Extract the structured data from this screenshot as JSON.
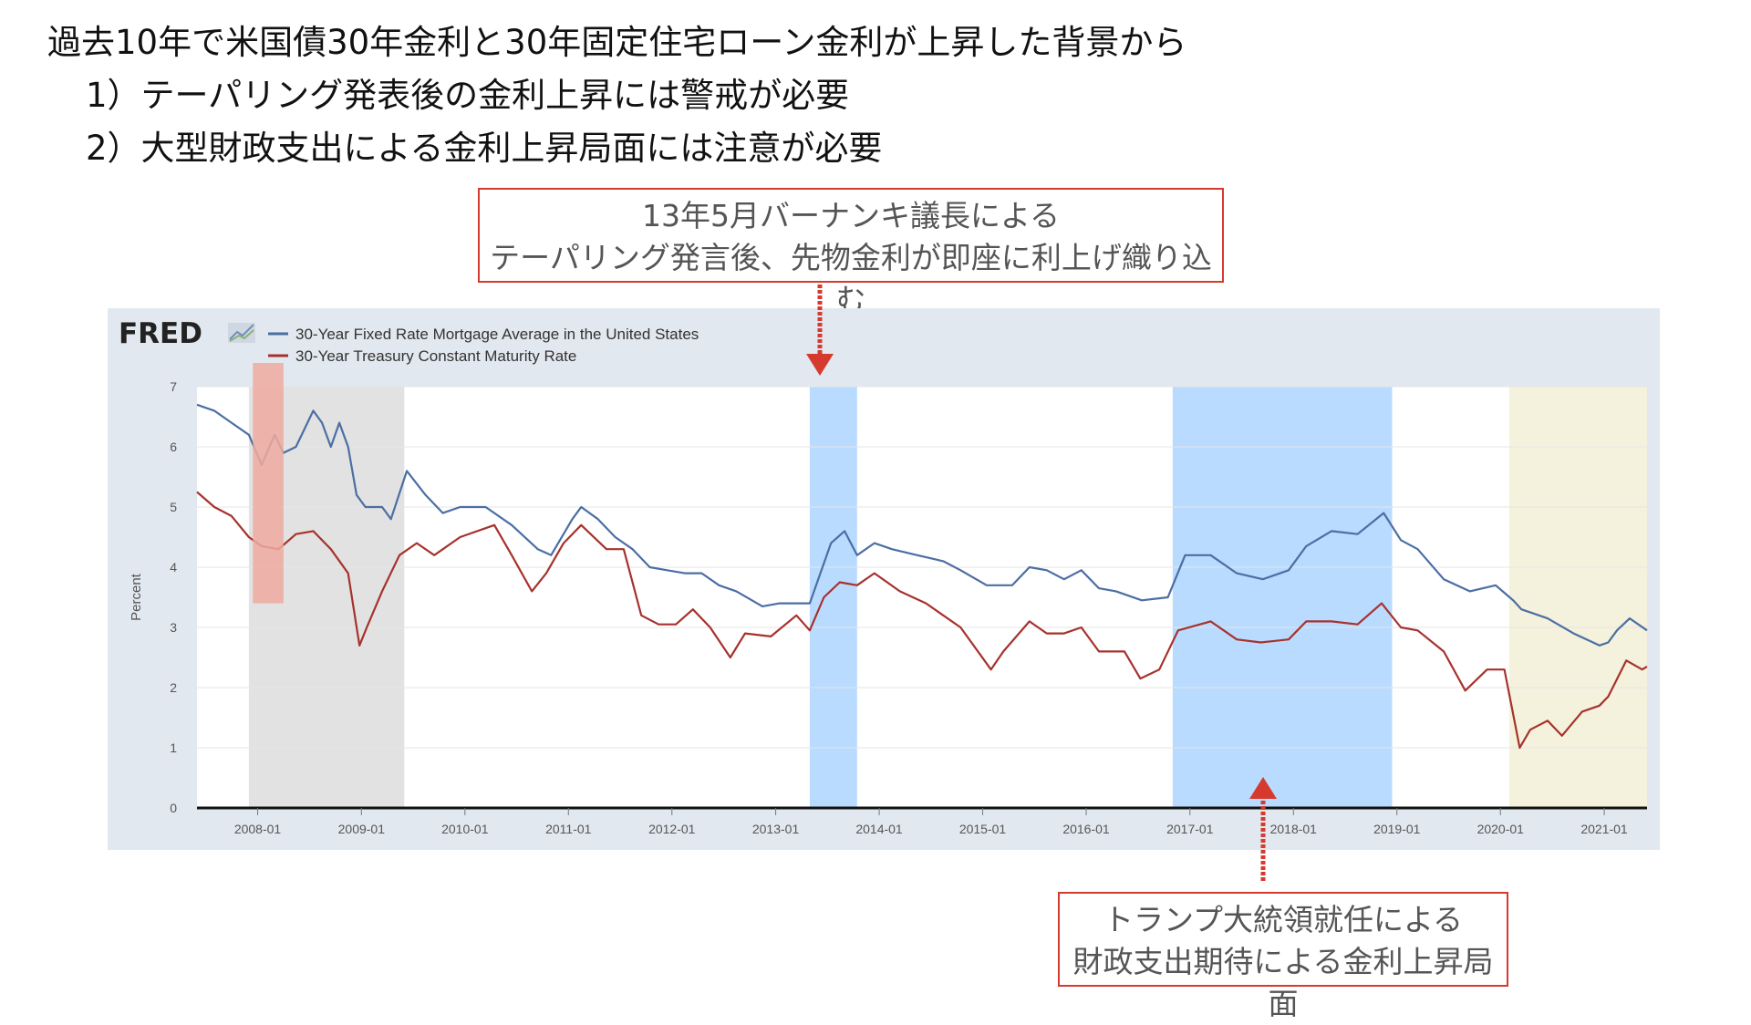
{
  "heading": {
    "line1": "過去10年で米国債30年金利と30年固定住宅ローン金利が上昇した背景から",
    "line2": "1）テーパリング発表後の金利上昇には警戒が必要",
    "line3": "2）大型財政支出による金利上昇局面には注意が必要"
  },
  "callouts": {
    "top": {
      "line1": "13年5月バーナンキ議長による",
      "line2": "テーパリング発言後、先物金利が即座に利上げ織り込む"
    },
    "bottom": {
      "line1": "トランプ大統領就任による",
      "line2": "財政支出期待による金利上昇局面"
    }
  },
  "colors": {
    "accent_red": "#d63a2f",
    "mortgage": "#4c6ea3",
    "treasury": "#a6322d",
    "recession": "#e2e2e2",
    "highlight_blue": "#b9dbff",
    "highlight_yellow": "#f4f2dc",
    "highlight_red": "#eeaaa0",
    "panel_bg": "#e2e8ef"
  },
  "chart_data": {
    "type": "line",
    "logo": "FRED",
    "logo_icon": "line-chart-icon",
    "ylabel": "Percent",
    "ylim": [
      0,
      7
    ],
    "xlim": [
      "2007-06-01",
      "2021-06-01"
    ],
    "yticks": [
      "0",
      "1",
      "2",
      "3",
      "4",
      "5",
      "6",
      "7"
    ],
    "xticks": [
      {
        "label": "2008-01",
        "date": "2008-01-01"
      },
      {
        "label": "2009-01",
        "date": "2009-01-01"
      },
      {
        "label": "2010-01",
        "date": "2010-01-01"
      },
      {
        "label": "2011-01",
        "date": "2011-01-01"
      },
      {
        "label": "2012-01",
        "date": "2012-01-01"
      },
      {
        "label": "2013-01",
        "date": "2013-01-01"
      },
      {
        "label": "2014-01",
        "date": "2014-01-01"
      },
      {
        "label": "2015-01",
        "date": "2015-01-01"
      },
      {
        "label": "2016-01",
        "date": "2016-01-01"
      },
      {
        "label": "2017-01",
        "date": "2017-01-01"
      },
      {
        "label": "2018-01",
        "date": "2018-01-01"
      },
      {
        "label": "2019-01",
        "date": "2019-01-01"
      },
      {
        "label": "2020-01",
        "date": "2020-01-01"
      },
      {
        "label": "2021-01",
        "date": "2021-01-01"
      }
    ],
    "shaded_regions": [
      {
        "start": "2007-12-01",
        "end": "2009-06-01",
        "color": "#e2e2e2",
        "kind": "recession"
      },
      {
        "start": "2013-05-01",
        "end": "2013-10-15",
        "color": "#b9dbff",
        "kind": "highlight"
      },
      {
        "start": "2016-11-01",
        "end": "2018-12-15",
        "color": "#b9dbff",
        "kind": "highlight"
      },
      {
        "start": "2020-02-01",
        "end": "2021-06-01",
        "color": "#f4f2dc",
        "kind": "highlight"
      }
    ],
    "red_marker": {
      "start": "2007-12-15",
      "end": "2008-04-01",
      "ymin": 3.4,
      "ymax": 7.7
    },
    "series": [
      {
        "name": "30-Year Fixed Rate Mortgage Average in the United States",
        "color": "#4c6ea3",
        "points": [
          [
            "2007-06-01",
            6.7
          ],
          [
            "2007-08-01",
            6.6
          ],
          [
            "2007-10-01",
            6.4
          ],
          [
            "2007-12-01",
            6.2
          ],
          [
            "2008-01-15",
            5.7
          ],
          [
            "2008-03-01",
            6.2
          ],
          [
            "2008-04-01",
            5.9
          ],
          [
            "2008-05-15",
            6.0
          ],
          [
            "2008-07-15",
            6.6
          ],
          [
            "2008-08-15",
            6.4
          ],
          [
            "2008-09-15",
            6.0
          ],
          [
            "2008-10-15",
            6.4
          ],
          [
            "2008-11-15",
            6.0
          ],
          [
            "2008-12-15",
            5.2
          ],
          [
            "2009-01-15",
            5.0
          ],
          [
            "2009-03-15",
            5.0
          ],
          [
            "2009-04-15",
            4.8
          ],
          [
            "2009-06-10",
            5.6
          ],
          [
            "2009-08-15",
            5.2
          ],
          [
            "2009-10-15",
            4.9
          ],
          [
            "2009-12-15",
            5.0
          ],
          [
            "2010-03-15",
            5.0
          ],
          [
            "2010-06-15",
            4.7
          ],
          [
            "2010-09-15",
            4.3
          ],
          [
            "2010-11-01",
            4.2
          ],
          [
            "2011-01-15",
            4.8
          ],
          [
            "2011-02-15",
            5.0
          ],
          [
            "2011-04-15",
            4.8
          ],
          [
            "2011-06-15",
            4.5
          ],
          [
            "2011-08-15",
            4.3
          ],
          [
            "2011-10-15",
            4.0
          ],
          [
            "2011-12-15",
            3.95
          ],
          [
            "2012-02-15",
            3.9
          ],
          [
            "2012-04-15",
            3.9
          ],
          [
            "2012-06-15",
            3.7
          ],
          [
            "2012-08-15",
            3.6
          ],
          [
            "2012-11-15",
            3.35
          ],
          [
            "2013-01-15",
            3.4
          ],
          [
            "2013-05-01",
            3.4
          ],
          [
            "2013-06-15",
            4.0
          ],
          [
            "2013-07-15",
            4.4
          ],
          [
            "2013-09-01",
            4.6
          ],
          [
            "2013-10-15",
            4.2
          ],
          [
            "2013-12-15",
            4.4
          ],
          [
            "2014-02-15",
            4.3
          ],
          [
            "2014-05-15",
            4.2
          ],
          [
            "2014-08-15",
            4.1
          ],
          [
            "2014-10-15",
            3.95
          ],
          [
            "2015-01-15",
            3.7
          ],
          [
            "2015-04-15",
            3.7
          ],
          [
            "2015-06-15",
            4.0
          ],
          [
            "2015-08-15",
            3.95
          ],
          [
            "2015-10-15",
            3.8
          ],
          [
            "2015-12-15",
            3.95
          ],
          [
            "2016-02-15",
            3.65
          ],
          [
            "2016-04-15",
            3.6
          ],
          [
            "2016-07-15",
            3.45
          ],
          [
            "2016-10-15",
            3.5
          ],
          [
            "2016-12-15",
            4.2
          ],
          [
            "2017-03-15",
            4.2
          ],
          [
            "2017-06-15",
            3.9
          ],
          [
            "2017-09-15",
            3.8
          ],
          [
            "2017-12-15",
            3.95
          ],
          [
            "2018-02-15",
            4.35
          ],
          [
            "2018-05-15",
            4.6
          ],
          [
            "2018-08-15",
            4.55
          ],
          [
            "2018-11-15",
            4.9
          ],
          [
            "2019-01-15",
            4.45
          ],
          [
            "2019-03-15",
            4.3
          ],
          [
            "2019-06-15",
            3.8
          ],
          [
            "2019-09-15",
            3.6
          ],
          [
            "2019-12-15",
            3.7
          ],
          [
            "2020-02-15",
            3.45
          ],
          [
            "2020-03-15",
            3.3
          ],
          [
            "2020-06-15",
            3.15
          ],
          [
            "2020-09-15",
            2.9
          ],
          [
            "2020-12-15",
            2.7
          ],
          [
            "2021-01-15",
            2.75
          ],
          [
            "2021-02-15",
            2.95
          ],
          [
            "2021-04-01",
            3.15
          ],
          [
            "2021-06-01",
            2.95
          ]
        ]
      },
      {
        "name": "30-Year Treasury Constant Maturity Rate",
        "color": "#a6322d",
        "points": [
          [
            "2007-06-01",
            5.25
          ],
          [
            "2007-08-01",
            5.0
          ],
          [
            "2007-10-01",
            4.85
          ],
          [
            "2007-12-01",
            4.5
          ],
          [
            "2008-01-15",
            4.35
          ],
          [
            "2008-03-15",
            4.3
          ],
          [
            "2008-05-15",
            4.55
          ],
          [
            "2008-07-15",
            4.6
          ],
          [
            "2008-09-15",
            4.3
          ],
          [
            "2008-11-15",
            3.9
          ],
          [
            "2008-12-25",
            2.7
          ],
          [
            "2009-01-20",
            3.0
          ],
          [
            "2009-03-15",
            3.6
          ],
          [
            "2009-05-15",
            4.2
          ],
          [
            "2009-07-15",
            4.4
          ],
          [
            "2009-09-15",
            4.2
          ],
          [
            "2009-12-15",
            4.5
          ],
          [
            "2010-04-15",
            4.7
          ],
          [
            "2010-06-15",
            4.2
          ],
          [
            "2010-08-25",
            3.6
          ],
          [
            "2010-10-15",
            3.9
          ],
          [
            "2010-12-15",
            4.4
          ],
          [
            "2011-02-15",
            4.7
          ],
          [
            "2011-05-15",
            4.3
          ],
          [
            "2011-07-15",
            4.3
          ],
          [
            "2011-09-15",
            3.2
          ],
          [
            "2011-11-15",
            3.05
          ],
          [
            "2012-01-15",
            3.05
          ],
          [
            "2012-03-15",
            3.3
          ],
          [
            "2012-05-15",
            3.0
          ],
          [
            "2012-07-25",
            2.5
          ],
          [
            "2012-09-15",
            2.9
          ],
          [
            "2012-12-15",
            2.85
          ],
          [
            "2013-03-15",
            3.2
          ],
          [
            "2013-05-01",
            2.95
          ],
          [
            "2013-06-20",
            3.5
          ],
          [
            "2013-08-15",
            3.75
          ],
          [
            "2013-10-15",
            3.7
          ],
          [
            "2013-12-15",
            3.9
          ],
          [
            "2014-03-15",
            3.6
          ],
          [
            "2014-06-15",
            3.4
          ],
          [
            "2014-08-15",
            3.2
          ],
          [
            "2014-10-15",
            3.0
          ],
          [
            "2015-01-30",
            2.3
          ],
          [
            "2015-03-15",
            2.6
          ],
          [
            "2015-06-15",
            3.1
          ],
          [
            "2015-08-15",
            2.9
          ],
          [
            "2015-10-15",
            2.9
          ],
          [
            "2015-12-15",
            3.0
          ],
          [
            "2016-02-15",
            2.6
          ],
          [
            "2016-05-15",
            2.6
          ],
          [
            "2016-07-10",
            2.15
          ],
          [
            "2016-09-15",
            2.3
          ],
          [
            "2016-11-20",
            2.95
          ],
          [
            "2017-03-15",
            3.1
          ],
          [
            "2017-06-15",
            2.8
          ],
          [
            "2017-09-08",
            2.75
          ],
          [
            "2017-12-15",
            2.8
          ],
          [
            "2018-02-15",
            3.1
          ],
          [
            "2018-05-15",
            3.1
          ],
          [
            "2018-08-15",
            3.05
          ],
          [
            "2018-11-08",
            3.4
          ],
          [
            "2019-01-15",
            3.0
          ],
          [
            "2019-03-15",
            2.95
          ],
          [
            "2019-06-15",
            2.6
          ],
          [
            "2019-08-30",
            1.95
          ],
          [
            "2019-11-15",
            2.3
          ],
          [
            "2020-01-15",
            2.3
          ],
          [
            "2020-03-09",
            1.0
          ],
          [
            "2020-04-15",
            1.3
          ],
          [
            "2020-06-15",
            1.45
          ],
          [
            "2020-08-05",
            1.2
          ],
          [
            "2020-10-15",
            1.6
          ],
          [
            "2020-12-15",
            1.7
          ],
          [
            "2021-01-15",
            1.85
          ],
          [
            "2021-03-20",
            2.45
          ],
          [
            "2021-05-15",
            2.3
          ],
          [
            "2021-06-01",
            2.35
          ]
        ]
      }
    ]
  }
}
